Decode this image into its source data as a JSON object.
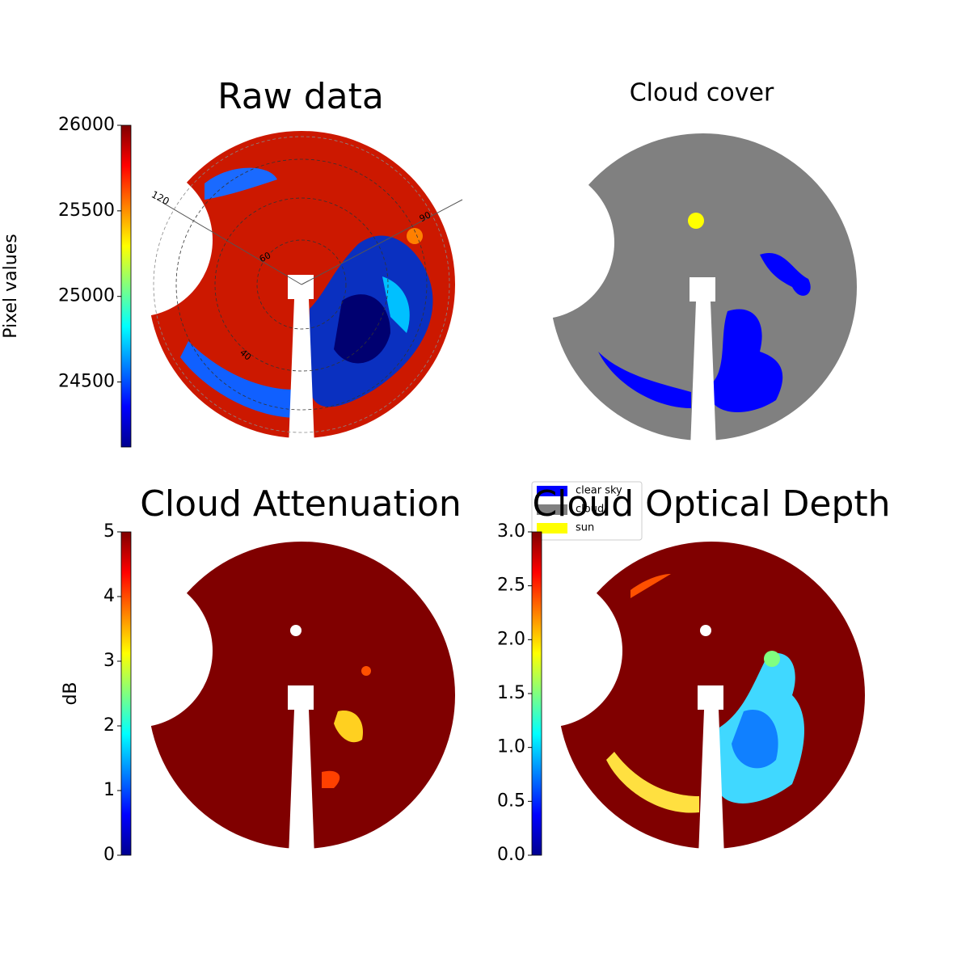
{
  "chart_data": [
    {
      "type": "image",
      "title": "Raw data",
      "annotations": [
        "120",
        "90",
        "60",
        "40"
      ],
      "colorbar": {
        "label": "Pixel values",
        "cmap": "jet",
        "lim": [
          24120,
          26000
        ],
        "ticks": [
          24500,
          25000,
          25500,
          26000
        ]
      }
    },
    {
      "type": "image",
      "title": "Cloud cover",
      "legend": [
        {
          "name": "clear sky",
          "color": "#0000ff"
        },
        {
          "name": "cloud",
          "color": "#808080"
        },
        {
          "name": "sun",
          "color": "#ffff00"
        }
      ]
    },
    {
      "type": "image",
      "title": "Cloud Attenuation",
      "colorbar": {
        "label": "dB",
        "cmap": "jet",
        "lim": [
          0,
          5
        ],
        "ticks": [
          0,
          1,
          2,
          3,
          4,
          5
        ]
      }
    },
    {
      "type": "image",
      "title": "Cloud Optical Depth",
      "colorbar": {
        "cmap": "jet",
        "lim": [
          0,
          3
        ],
        "ticks": [
          {
            "value": 0,
            "label": "0.0"
          },
          {
            "value": 0.5,
            "label": "0.5"
          },
          {
            "value": 1,
            "label": "1.0"
          },
          {
            "value": 1.5,
            "label": "1.5"
          },
          {
            "value": 2,
            "label": "2.0"
          },
          {
            "value": 2.5,
            "label": "2.5"
          },
          {
            "value": 3,
            "label": "3.0"
          }
        ]
      }
    }
  ]
}
